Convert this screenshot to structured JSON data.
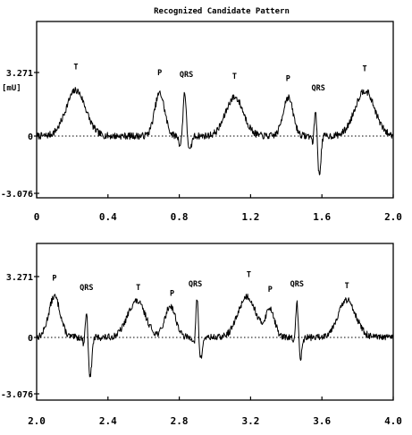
{
  "title": "Recognized Candidate Pattern",
  "unit": "[mU]",
  "chart_data": [
    {
      "type": "line",
      "title": "Recognized Candidate Pattern",
      "xlabel": "",
      "ylabel": "[mU]",
      "xlim": [
        0,
        2.0
      ],
      "ylim": [
        -3.076,
        3.271
      ],
      "x_ticks": [
        "0",
        "0.4",
        "0.8",
        "1.2",
        "1.6",
        "2.0"
      ],
      "x_tick_values": [
        0,
        0.4,
        0.8,
        1.2,
        1.6,
        2.0
      ],
      "y_ticks": [
        "3.271",
        "0",
        "-3.076"
      ],
      "y_tick_values": [
        3.271,
        0,
        -3.076
      ],
      "grid": false,
      "baseline_dotted_at": 0,
      "annotations": [
        {
          "label": "T",
          "x": 0.22,
          "y": 3.3
        },
        {
          "label": "P",
          "x": 0.69,
          "y": 3.0
        },
        {
          "label": "QRS",
          "x": 0.84,
          "y": 2.9
        },
        {
          "label": "T",
          "x": 1.11,
          "y": 2.8
        },
        {
          "label": "P",
          "x": 1.41,
          "y": 2.7
        },
        {
          "label": "QRS",
          "x": 1.58,
          "y": 2.2
        },
        {
          "label": "T",
          "x": 1.84,
          "y": 3.2
        }
      ],
      "waves": [
        {
          "c": 0.22,
          "a": 2.35,
          "w": 0.055,
          "k": "T"
        },
        {
          "c": 0.69,
          "a": 2.2,
          "w": 0.028,
          "k": "P"
        },
        {
          "c": 0.83,
          "a": 2.3,
          "w": 0.008,
          "k": "R"
        },
        {
          "c": 0.805,
          "a": -0.5,
          "w": 0.007,
          "k": "Q"
        },
        {
          "c": 0.86,
          "a": -0.8,
          "w": 0.009,
          "k": "S"
        },
        {
          "c": 1.11,
          "a": 2.0,
          "w": 0.05,
          "k": "T"
        },
        {
          "c": 1.41,
          "a": 2.0,
          "w": 0.028,
          "k": "P"
        },
        {
          "c": 1.565,
          "a": 1.5,
          "w": 0.007,
          "k": "R"
        },
        {
          "c": 1.55,
          "a": -0.4,
          "w": 0.006,
          "k": "Q"
        },
        {
          "c": 1.585,
          "a": -2.1,
          "w": 0.009,
          "k": "S"
        },
        {
          "c": 1.84,
          "a": 2.35,
          "w": 0.055,
          "k": "T"
        }
      ],
      "noise": 0.18
    },
    {
      "type": "line",
      "title": "",
      "xlabel": "",
      "ylabel": "",
      "xlim": [
        2.0,
        4.0
      ],
      "ylim": [
        -3.076,
        3.271
      ],
      "x_ticks": [
        "2.0",
        "2.4",
        "2.8",
        "3.2",
        "3.6",
        "4.0"
      ],
      "x_tick_values": [
        2.0,
        2.4,
        2.8,
        3.2,
        3.6,
        4.0
      ],
      "y_ticks": [
        "3.271",
        "0",
        "-3.076"
      ],
      "y_tick_values": [
        3.271,
        0,
        -3.076
      ],
      "grid": false,
      "baseline_dotted_at": 0,
      "annotations": [
        {
          "label": "P",
          "x": 2.1,
          "y": 2.9
        },
        {
          "label": "QRS",
          "x": 2.28,
          "y": 2.4
        },
        {
          "label": "T",
          "x": 2.57,
          "y": 2.4
        },
        {
          "label": "P",
          "x": 2.76,
          "y": 2.1
        },
        {
          "label": "QRS",
          "x": 2.89,
          "y": 2.6
        },
        {
          "label": "T",
          "x": 3.19,
          "y": 3.1
        },
        {
          "label": "P",
          "x": 3.31,
          "y": 2.3
        },
        {
          "label": "QRS",
          "x": 3.46,
          "y": 2.6
        },
        {
          "label": "T",
          "x": 3.74,
          "y": 2.5
        }
      ],
      "waves": [
        {
          "c": 2.1,
          "a": 2.2,
          "w": 0.032,
          "k": "P"
        },
        {
          "c": 2.28,
          "a": 1.5,
          "w": 0.007,
          "k": "R"
        },
        {
          "c": 2.265,
          "a": -0.4,
          "w": 0.006,
          "k": "Q"
        },
        {
          "c": 2.3,
          "a": -2.2,
          "w": 0.009,
          "k": "S"
        },
        {
          "c": 2.56,
          "a": 1.95,
          "w": 0.05,
          "k": "T"
        },
        {
          "c": 2.75,
          "a": 1.7,
          "w": 0.03,
          "k": "P"
        },
        {
          "c": 2.9,
          "a": 2.2,
          "w": 0.007,
          "k": "R"
        },
        {
          "c": 2.885,
          "a": -0.5,
          "w": 0.006,
          "k": "Q"
        },
        {
          "c": 2.92,
          "a": -1.2,
          "w": 0.009,
          "k": "S"
        },
        {
          "c": 3.18,
          "a": 2.2,
          "w": 0.05,
          "k": "T"
        },
        {
          "c": 3.31,
          "a": 1.5,
          "w": 0.025,
          "k": "P"
        },
        {
          "c": 3.46,
          "a": 2.0,
          "w": 0.007,
          "k": "R"
        },
        {
          "c": 3.445,
          "a": -0.4,
          "w": 0.006,
          "k": "Q"
        },
        {
          "c": 3.48,
          "a": -1.1,
          "w": 0.009,
          "k": "S"
        },
        {
          "c": 3.74,
          "a": 2.0,
          "w": 0.05,
          "k": "T"
        }
      ],
      "noise": 0.18
    }
  ]
}
